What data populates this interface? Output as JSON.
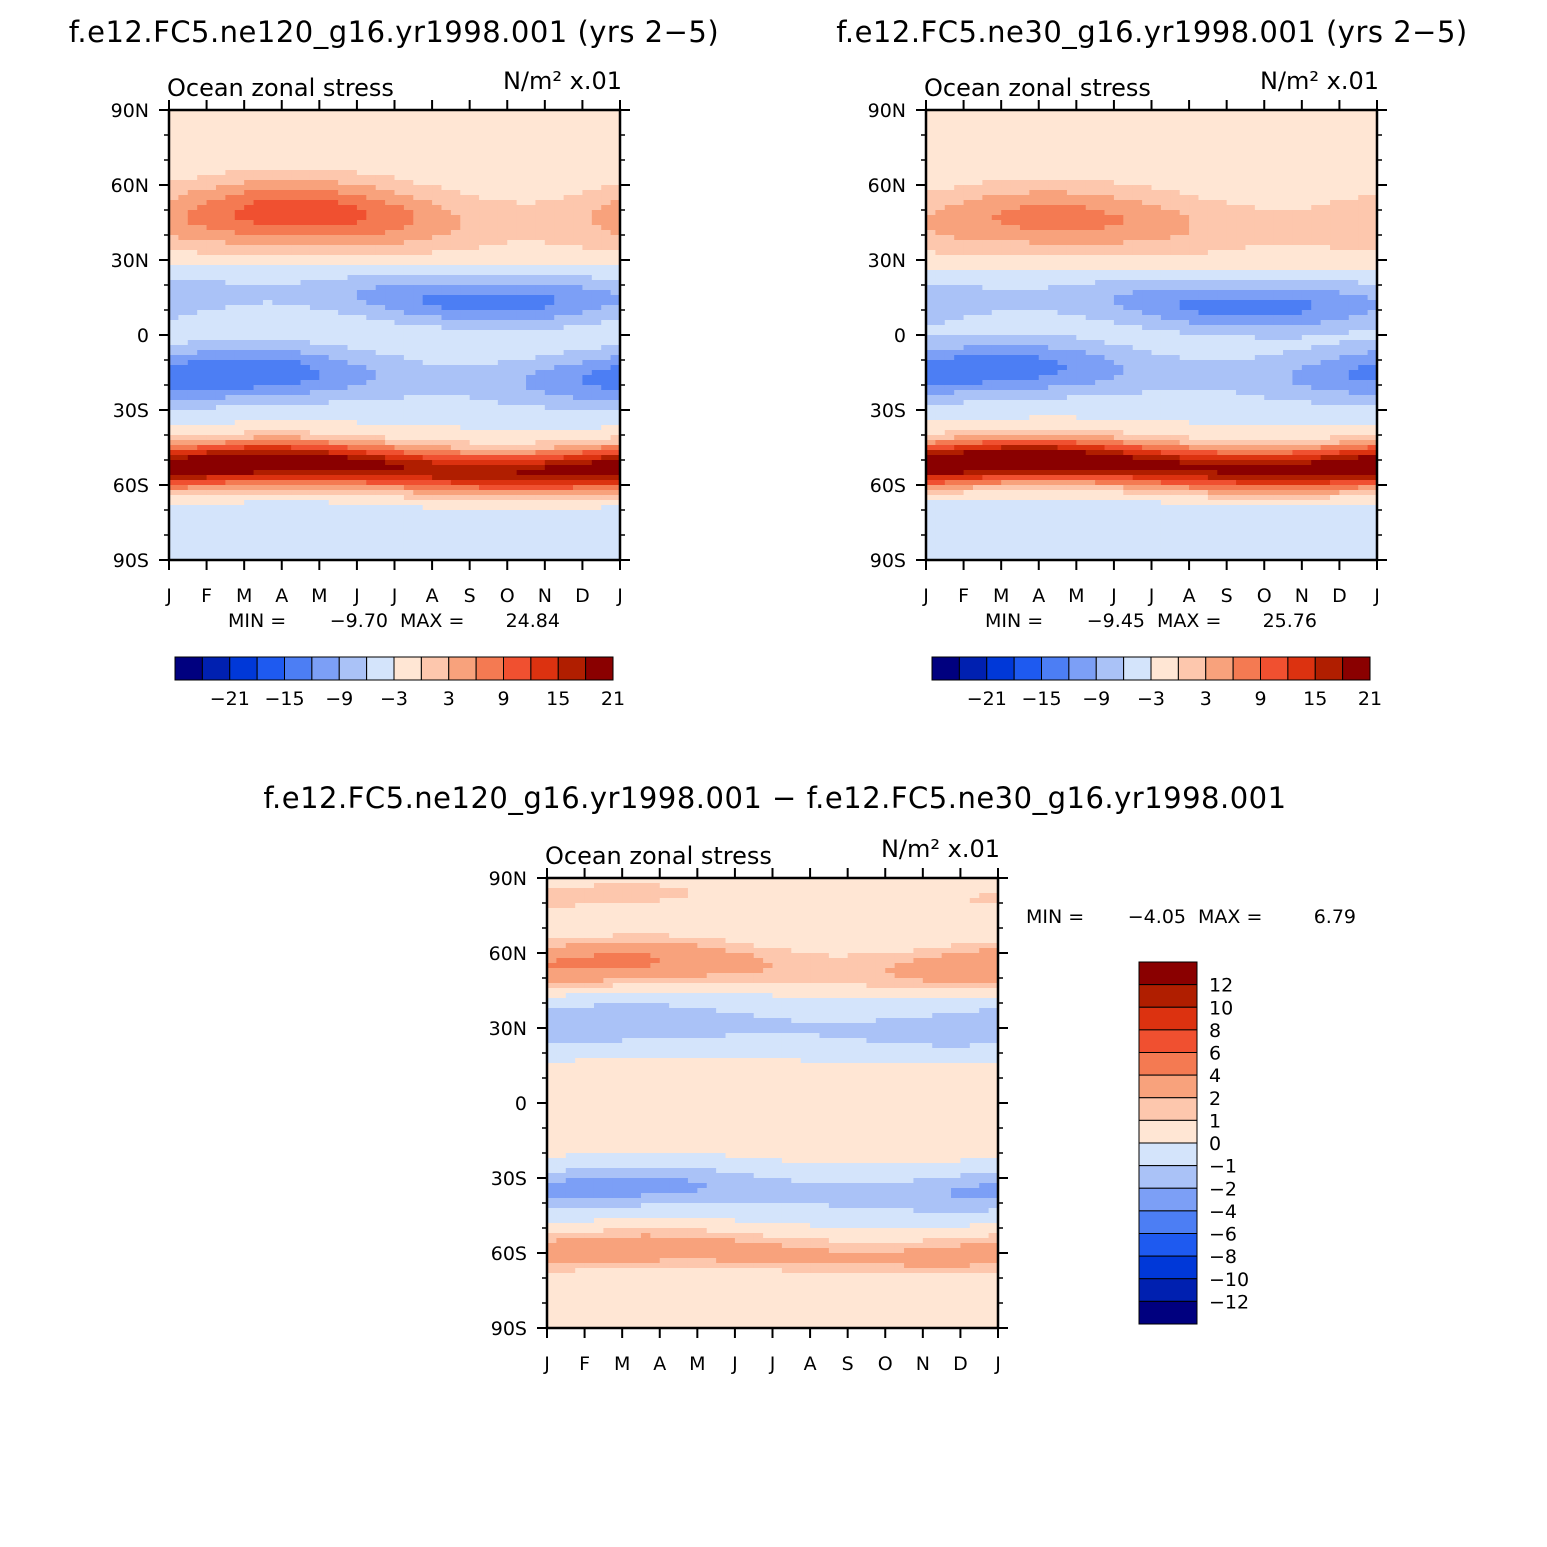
{
  "figure": {
    "top_left_title": "f.e12.FC5.ne120_g16.yr1998.001 (yrs 2−5)",
    "top_right_title": "f.e12.FC5.ne30_g16.yr1998.001 (yrs 2−5)",
    "bottom_title": "f.e12.FC5.ne120_g16.yr1998.001 − f.e12.FC5.ne30_g16.yr1998.001"
  },
  "chart_data": [
    {
      "id": "ne120",
      "type": "heatmap",
      "title": "Ocean zonal stress",
      "units": "N/m² x.01",
      "x_ticks": [
        "J",
        "F",
        "M",
        "A",
        "M",
        "J",
        "J",
        "A",
        "S",
        "O",
        "N",
        "D",
        "J"
      ],
      "y_ticks": [
        "90N",
        "60N",
        "30N",
        "0",
        "30S",
        "60S",
        "90S"
      ],
      "y_range": [
        -90,
        90
      ],
      "x_range": [
        0,
        12
      ],
      "stats": {
        "min_label": "MIN =",
        "min": "−9.70",
        "max_label": "MAX =",
        "max": "24.84"
      },
      "levels": [
        -24,
        -21,
        -18,
        -15,
        -12,
        -9,
        -6,
        -3,
        0,
        3,
        6,
        9,
        12,
        15,
        18,
        21,
        24
      ],
      "colorbar_labels": [
        "−21",
        "−15",
        "−9",
        "−3",
        "3",
        "9",
        "15",
        "21"
      ],
      "colorbar_orientation": "horizontal",
      "features": [
        {
          "lat": 47,
          "amp": 9,
          "sig": 10,
          "season": [
            3.5,
            0.55
          ]
        },
        {
          "lat": 15,
          "amp": -7,
          "sig": 7,
          "season": [
            2.5,
            -0.5
          ]
        },
        {
          "lat": -17,
          "amp": -8,
          "sig": 8,
          "season": [
            1.5,
            0.5
          ]
        },
        {
          "lat": -53,
          "amp": 23,
          "sig": 6,
          "season": [
            1.8,
            0.12
          ]
        },
        {
          "lat": -72,
          "amp": -1.2,
          "sig": 4,
          "season": [
            0,
            0
          ]
        },
        {
          "lat": 78,
          "amp": 1.0,
          "sig": 6,
          "season": [
            0,
            0
          ]
        }
      ]
    },
    {
      "id": "ne30",
      "type": "heatmap",
      "title": "Ocean zonal stress",
      "units": "N/m² x.01",
      "x_ticks": [
        "J",
        "F",
        "M",
        "A",
        "M",
        "J",
        "J",
        "A",
        "S",
        "O",
        "N",
        "D",
        "J"
      ],
      "y_ticks": [
        "90N",
        "60N",
        "30N",
        "0",
        "30S",
        "60S",
        "90S"
      ],
      "y_range": [
        -90,
        90
      ],
      "x_range": [
        0,
        12
      ],
      "stats": {
        "min_label": "MIN =",
        "min": "−9.45",
        "max_label": "MAX =",
        "max": "25.76"
      },
      "levels": [
        -24,
        -21,
        -18,
        -15,
        -12,
        -9,
        -6,
        -3,
        0,
        3,
        6,
        9,
        12,
        15,
        18,
        21,
        24
      ],
      "colorbar_labels": [
        "−21",
        "−15",
        "−9",
        "−3",
        "3",
        "9",
        "15",
        "21"
      ],
      "colorbar_orientation": "horizontal",
      "features": [
        {
          "lat": 45,
          "amp": 7,
          "sig": 10,
          "season": [
            3.5,
            0.45
          ]
        },
        {
          "lat": 13,
          "amp": -7,
          "sig": 7,
          "season": [
            2.5,
            -0.5
          ]
        },
        {
          "lat": -15,
          "amp": -7.5,
          "sig": 8,
          "season": [
            1.5,
            0.5
          ]
        },
        {
          "lat": -52,
          "amp": 24,
          "sig": 6,
          "season": [
            1.8,
            0.1
          ]
        },
        {
          "lat": -70,
          "amp": -1.5,
          "sig": 4,
          "season": [
            0,
            0
          ]
        },
        {
          "lat": 78,
          "amp": 1.0,
          "sig": 6,
          "season": [
            0,
            0
          ]
        }
      ]
    },
    {
      "id": "difference",
      "type": "heatmap",
      "title": "Ocean zonal stress",
      "units": "N/m² x.01",
      "x_ticks": [
        "J",
        "F",
        "M",
        "A",
        "M",
        "J",
        "J",
        "A",
        "S",
        "O",
        "N",
        "D",
        "J"
      ],
      "y_ticks": [
        "90N",
        "60N",
        "30N",
        "0",
        "30S",
        "60S",
        "90S"
      ],
      "y_range": [
        -90,
        90
      ],
      "x_range": [
        0,
        12
      ],
      "stats": {
        "min_label": "MIN =",
        "min": "−4.05",
        "max_label": "MAX =",
        "max": "6.79"
      },
      "levels": [
        -14,
        -12,
        -10,
        -8,
        -6,
        -4,
        -2,
        -1,
        0,
        1,
        2,
        4,
        6,
        8,
        10,
        12,
        14
      ],
      "colorbar_labels": [
        "12",
        "10",
        "8",
        "6",
        "4",
        "2",
        "1",
        "0",
        "−1",
        "−2",
        "−4",
        "−6",
        "−8",
        "−10",
        "−12"
      ],
      "colorbar_orientation": "vertical",
      "features": [
        {
          "lat": 55,
          "amp": 3.0,
          "sig": 6,
          "season": [
            1.5,
            0.5
          ]
        },
        {
          "lat": 30,
          "amp": -1.6,
          "sig": 8,
          "season": [
            1.0,
            0.2
          ]
        },
        {
          "lat": 5,
          "amp": 0.5,
          "sig": 20,
          "season": [
            0,
            0
          ]
        },
        {
          "lat": -35,
          "amp": -2.0,
          "sig": 6,
          "season": [
            1.5,
            0.3
          ]
        },
        {
          "lat": -60,
          "amp": 2.8,
          "sig": 5,
          "season": [
            2.0,
            0.2
          ]
        },
        {
          "lat": 82,
          "amp": 0.8,
          "sig": 5,
          "season": [
            1.5,
            0.7
          ]
        }
      ]
    }
  ],
  "colors": {
    "palette": [
      "#00007f",
      "#0020b0",
      "#0038d8",
      "#1e5af0",
      "#4c7ef4",
      "#7c9ff6",
      "#aac2f7",
      "#d4e4fb",
      "#ffe6d4",
      "#fdc7ad",
      "#f8a27c",
      "#f47a52",
      "#f05030",
      "#dc3210",
      "#b01e00",
      "#8a0000"
    ]
  }
}
